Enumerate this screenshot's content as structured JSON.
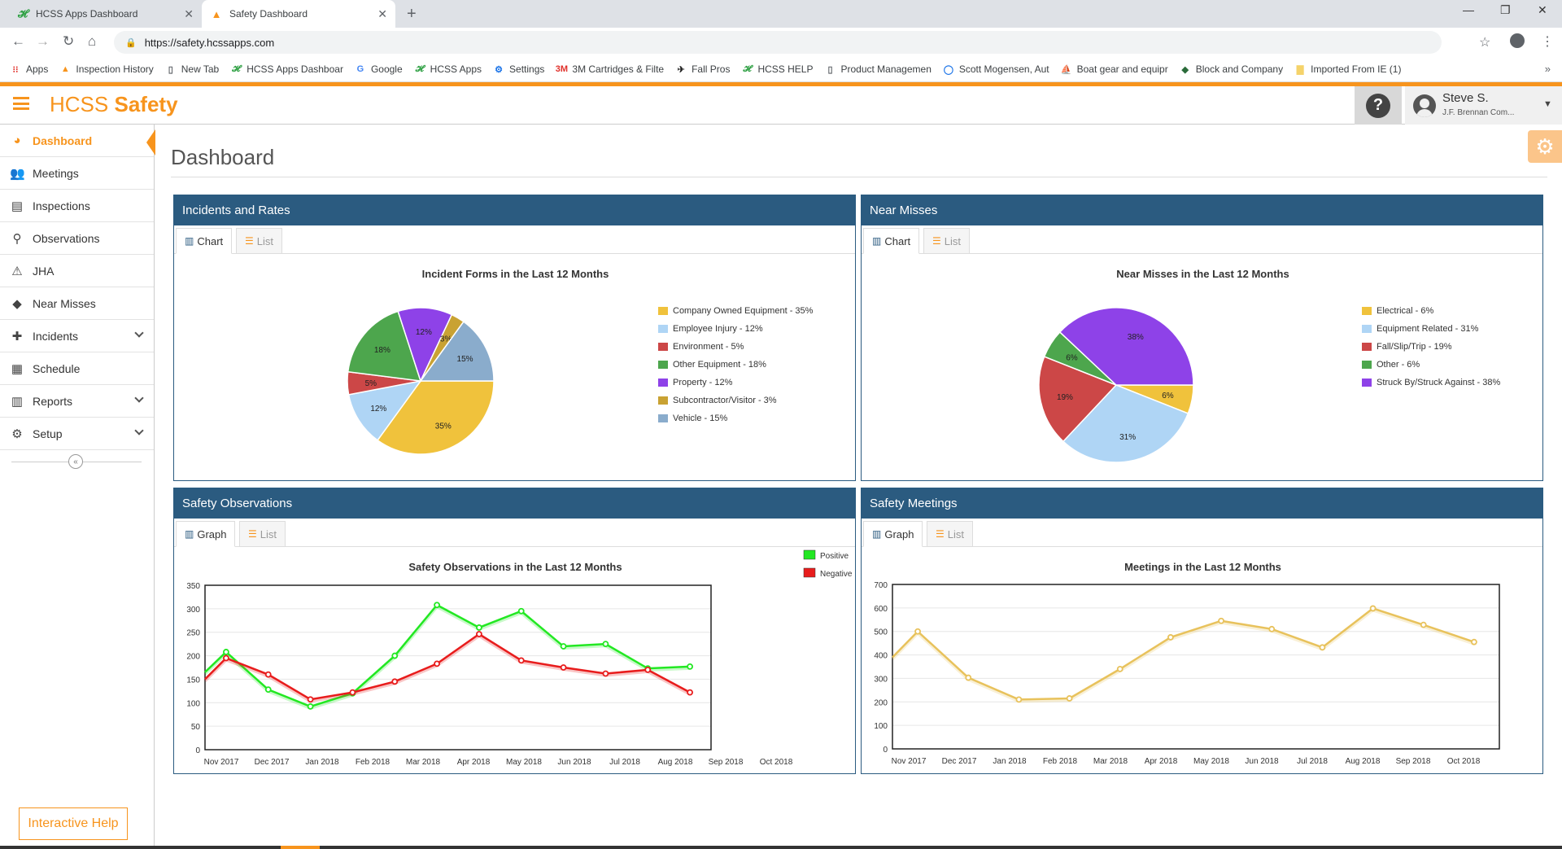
{
  "browser": {
    "tabs": [
      {
        "title": "HCSS Apps Dashboard",
        "active": false
      },
      {
        "title": "Safety Dashboard",
        "active": true
      }
    ],
    "url": "https://safety.hcssapps.com",
    "bookmarks": [
      {
        "label": "Apps",
        "icon": "apps-grid-icon"
      },
      {
        "label": "Inspection History",
        "icon": "traffic-cone-icon"
      },
      {
        "label": "New Tab",
        "icon": "page-icon"
      },
      {
        "label": "HCSS Apps Dashboar",
        "icon": "hcss-icon"
      },
      {
        "label": "Google",
        "icon": "google-icon"
      },
      {
        "label": "HCSS Apps",
        "icon": "hcss-icon"
      },
      {
        "label": "Settings",
        "icon": "gear-icon"
      },
      {
        "label": "3M Cartridges & Filte",
        "icon": "3m-icon"
      },
      {
        "label": "Fall Pros",
        "icon": "fall-pros-icon"
      },
      {
        "label": "HCSS HELP",
        "icon": "hcss-icon"
      },
      {
        "label": "Product Managemen",
        "icon": "page-icon"
      },
      {
        "label": "Scott Mogensen, Aut",
        "icon": "circle-icon"
      },
      {
        "label": "Boat gear and equipr",
        "icon": "boat-icon"
      },
      {
        "label": "Block and Company",
        "icon": "block-icon"
      },
      {
        "label": "Imported From IE (1)",
        "icon": "folder-icon"
      }
    ],
    "bookmarks_more": "»"
  },
  "app": {
    "brand_light": "HCSS",
    "brand_bold": "Safety",
    "accent_color": "#f7941d",
    "panel_color": "#2b5b80",
    "user": {
      "name": "Steve S.",
      "company": "J.F. Brennan Com..."
    },
    "help_glyph": "?"
  },
  "sidebar": {
    "items": [
      {
        "label": "Dashboard",
        "icon": "dashboard-icon",
        "active": true,
        "expandable": false
      },
      {
        "label": "Meetings",
        "icon": "people-icon",
        "active": false,
        "expandable": false
      },
      {
        "label": "Inspections",
        "icon": "clipboard-icon",
        "active": false,
        "expandable": false
      },
      {
        "label": "Observations",
        "icon": "magnifier-icon",
        "active": false,
        "expandable": false
      },
      {
        "label": "JHA",
        "icon": "warning-icon",
        "active": false,
        "expandable": false
      },
      {
        "label": "Near Misses",
        "icon": "diamond-alert-icon",
        "active": false,
        "expandable": false
      },
      {
        "label": "Incidents",
        "icon": "first-aid-icon",
        "active": false,
        "expandable": true
      },
      {
        "label": "Schedule",
        "icon": "calendar-icon",
        "active": false,
        "expandable": false
      },
      {
        "label": "Reports",
        "icon": "bar-chart-icon",
        "active": false,
        "expandable": true
      },
      {
        "label": "Setup",
        "icon": "gear-icon",
        "active": false,
        "expandable": true
      }
    ],
    "interactive_help": "Interactive Help"
  },
  "main": {
    "page_title": "Dashboard",
    "panels": {
      "incidents": {
        "title": "Incidents and Rates",
        "tab_on": "Chart",
        "tab_off": "List"
      },
      "near_misses": {
        "title": "Near Misses",
        "tab_on": "Chart",
        "tab_off": "List"
      },
      "observations": {
        "title": "Safety Observations",
        "tab_on": "Graph",
        "tab_off": "List"
      },
      "meetings": {
        "title": "Safety Meetings",
        "tab_on": "Graph",
        "tab_off": "List"
      }
    }
  },
  "chart_data": [
    {
      "type": "pie",
      "title": "Incident Forms in the Last 12 Months",
      "slices": [
        {
          "label": "Company Owned Equipment - 35%",
          "short": "35%",
          "value": 35,
          "color": "#f0c23c"
        },
        {
          "label": "Employee Injury - 12%",
          "short": "12%",
          "value": 12,
          "color": "#afd5f5"
        },
        {
          "label": "Environment - 5%",
          "short": "5%",
          "value": 5,
          "color": "#cc4747"
        },
        {
          "label": "Other Equipment - 18%",
          "short": "18%",
          "value": 18,
          "color": "#4da64d"
        },
        {
          "label": "Property - 12%",
          "short": "12%",
          "value": 12,
          "color": "#8e42e8"
        },
        {
          "label": "Subcontractor/Visitor - 3%",
          "short": "3%",
          "value": 3,
          "color": "#c9a233"
        },
        {
          "label": "Vehicle - 15%",
          "short": "15%",
          "value": 15,
          "color": "#8aaccc"
        }
      ],
      "legend_position": "right"
    },
    {
      "type": "pie",
      "title": "Near Misses in the Last 12 Months",
      "slices": [
        {
          "label": "Electrical - 6%",
          "short": "6%",
          "value": 6,
          "color": "#f0c23c"
        },
        {
          "label": "Equipment Related - 31%",
          "short": "31%",
          "value": 31,
          "color": "#afd5f5"
        },
        {
          "label": "Fall/Slip/Trip - 19%",
          "short": "19%",
          "value": 19,
          "color": "#cc4747"
        },
        {
          "label": "Other - 6%",
          "short": "6%",
          "value": 6,
          "color": "#4da64d"
        },
        {
          "label": "Struck By/Struck Against - 38%",
          "short": "38%",
          "value": 38,
          "color": "#8e42e8"
        }
      ],
      "legend_position": "right"
    },
    {
      "type": "line",
      "title": "Safety Observations in the Last 12 Months",
      "categories": [
        "Nov 2017",
        "Dec 2017",
        "Jan 2018",
        "Feb 2018",
        "Mar 2018",
        "Apr 2018",
        "May 2018",
        "Jun 2018",
        "Jul 2018",
        "Aug 2018",
        "Sep 2018",
        "Oct 2018"
      ],
      "yticks": [
        0,
        50,
        100,
        150,
        200,
        250,
        300,
        350
      ],
      "ylim": [
        0,
        350
      ],
      "series": [
        {
          "name": "Positive",
          "color": "#22e822",
          "start": 165,
          "values": [
            208,
            128,
            92,
            120,
            200,
            308,
            260,
            295,
            220,
            225,
            173,
            177
          ]
        },
        {
          "name": "Negative",
          "color": "#e81c1c",
          "start": 150,
          "values": [
            195,
            160,
            107,
            122,
            145,
            183,
            246,
            190,
            175,
            162,
            170,
            122
          ]
        }
      ],
      "legend_position": "top-right"
    },
    {
      "type": "line",
      "title": "Meetings in the Last 12 Months",
      "categories": [
        "Nov 2017",
        "Dec 2017",
        "Jan 2018",
        "Feb 2018",
        "Mar 2018",
        "Apr 2018",
        "May 2018",
        "Jun 2018",
        "Jul 2018",
        "Aug 2018",
        "Sep 2018",
        "Oct 2018"
      ],
      "yticks": [
        0,
        100,
        200,
        300,
        400,
        500,
        600,
        700
      ],
      "ylim": [
        0,
        700
      ],
      "series": [
        {
          "name": "",
          "color": "#e8c25c",
          "start": 390,
          "values": [
            500,
            303,
            210,
            215,
            340,
            475,
            545,
            510,
            432,
            598,
            528,
            455
          ]
        }
      ]
    }
  ]
}
